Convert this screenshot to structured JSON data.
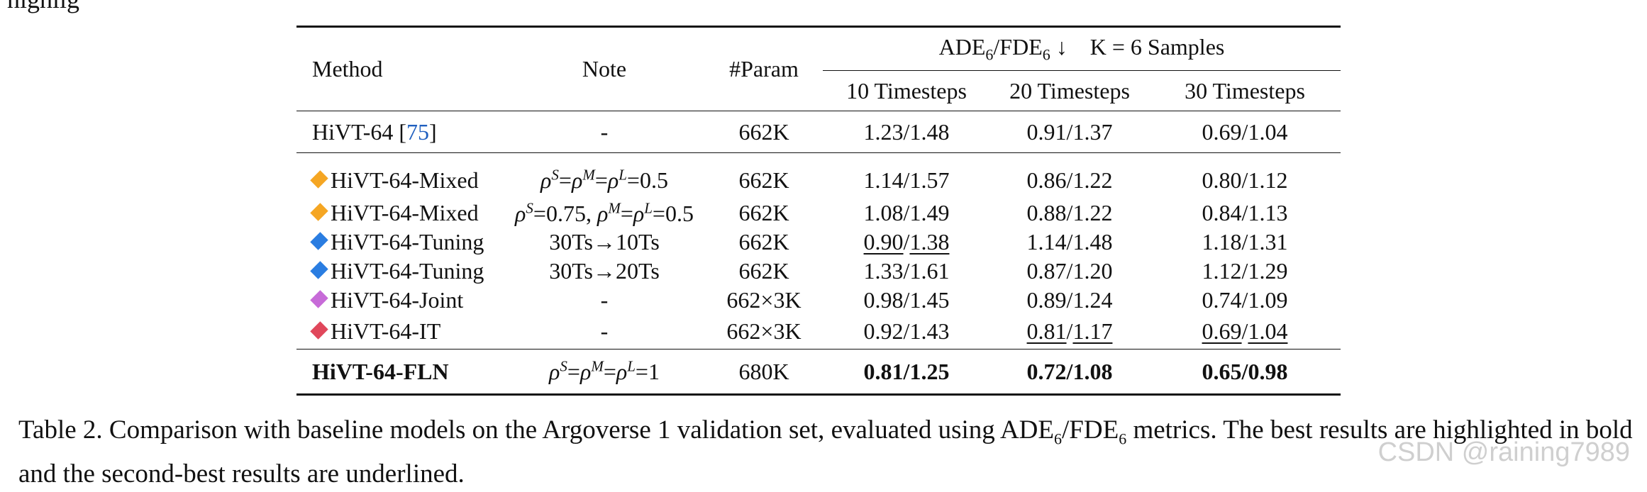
{
  "page": {
    "top_fragment": "highlig",
    "watermark": "CSDN @raining7989"
  },
  "table": {
    "headers": {
      "method": "Method",
      "note": "Note",
      "param": "#Param",
      "group_metric_prefix": "ADE",
      "group_metric_sub1": "6",
      "group_metric_mid": "/FDE",
      "group_metric_sub2": "6",
      "group_arrow": "↓",
      "group_samples": "K = 6 Samples",
      "t10": "10 Timesteps",
      "t20": "20 Timesteps",
      "t30": "30 Timesteps"
    },
    "rows": [
      {
        "method": "HiVT-64",
        "cite": "75",
        "note": "-",
        "param": "662K",
        "t10": {
          "ade": "1.23",
          "fde": "1.48"
        },
        "t20": {
          "ade": "0.91",
          "fde": "1.37"
        },
        "t30": {
          "ade": "0.69",
          "fde": "1.04"
        }
      },
      {
        "method": "HiVT-64-Mixed",
        "marker_color": "#f5a623",
        "note": "ρS=ρM=ρL=0.5",
        "param": "662K",
        "t10": {
          "ade": "1.14",
          "fde": "1.57"
        },
        "t20": {
          "ade": "0.86",
          "fde": "1.22"
        },
        "t30": {
          "ade": "0.80",
          "fde": "1.12"
        }
      },
      {
        "method": "HiVT-64-Mixed",
        "marker_color": "#f5a623",
        "note": "ρS=0.75, ρM=ρL=0.5",
        "param": "662K",
        "t10": {
          "ade": "1.08",
          "fde": "1.49"
        },
        "t20": {
          "ade": "0.88",
          "fde": "1.22"
        },
        "t30": {
          "ade": "0.84",
          "fde": "1.13"
        }
      },
      {
        "method": "HiVT-64-Tuning",
        "marker_color": "#2a7de1",
        "note": "30Ts→10Ts",
        "param": "662K",
        "t10": {
          "ade": "0.90",
          "fde": "1.38"
        },
        "t20": {
          "ade": "1.14",
          "fde": "1.48"
        },
        "t30": {
          "ade": "1.18",
          "fde": "1.31"
        }
      },
      {
        "method": "HiVT-64-Tuning",
        "marker_color": "#2a7de1",
        "note": "30Ts→20Ts",
        "param": "662K",
        "t10": {
          "ade": "1.33",
          "fde": "1.61"
        },
        "t20": {
          "ade": "0.87",
          "fde": "1.20"
        },
        "t30": {
          "ade": "1.12",
          "fde": "1.29"
        }
      },
      {
        "method": "HiVT-64-Joint",
        "marker_color": "#c76bd8",
        "note": "-",
        "param": "662×3K",
        "t10": {
          "ade": "0.98",
          "fde": "1.45"
        },
        "t20": {
          "ade": "0.89",
          "fde": "1.24"
        },
        "t30": {
          "ade": "0.74",
          "fde": "1.09"
        }
      },
      {
        "method": "HiVT-64-IT",
        "marker_color": "#e0475b",
        "note": "-",
        "param": "662×3K",
        "t10": {
          "ade": "0.92",
          "fde": "1.43"
        },
        "t20": {
          "ade": "0.81",
          "fde": "1.17"
        },
        "t30": {
          "ade": "0.69",
          "fde": "1.04"
        }
      },
      {
        "method": "HiVT-64-FLN",
        "note": "ρS=ρM=ρL=1",
        "param": "680K",
        "t10": {
          "ade": "0.81",
          "fde": "1.25"
        },
        "t20": {
          "ade": "0.72",
          "fde": "1.08"
        },
        "t30": {
          "ade": "0.65",
          "fde": "0.98"
        }
      }
    ]
  },
  "caption": {
    "text_part1": "Table 2.  Comparison with baseline models on the Argoverse 1 validation set, evaluated using ADE",
    "sub1": "6",
    "text_part2": "/FDE",
    "sub2": "6",
    "text_part3": " metrics.  The best results are highlighted in bold and the second-best results are underlined."
  }
}
